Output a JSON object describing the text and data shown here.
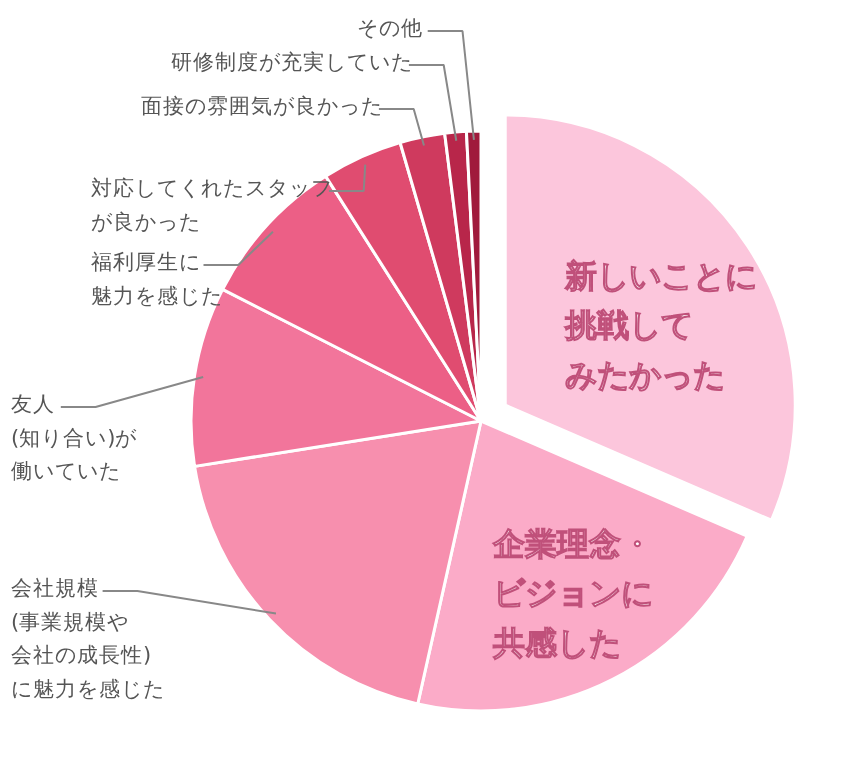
{
  "chart_data": {
    "type": "pie",
    "categories": [
      "新しいことに挑戦してみたかった",
      "企業理念・ビジョンに共感した",
      "会社規模(事業規模や会社の成長性)に魅力を感じた",
      "友人(知り合い)が働いていた",
      "福利厚生に魅力を感じた",
      "対応してくれたスタッフが良かった",
      "面接の雰囲気が良かった",
      "研修制度が充実していた",
      "その他"
    ],
    "values": [
      31.5,
      22,
      19,
      10,
      8.5,
      4.5,
      2.5,
      1.2,
      0.8
    ],
    "colors": [
      "#fcc6dc",
      "#fbabc8",
      "#f78fae",
      "#f2759b",
      "#ec5f86",
      "#e04c70",
      "#cf3a5e",
      "#b8264a",
      "#a01a3c"
    ]
  }
}
